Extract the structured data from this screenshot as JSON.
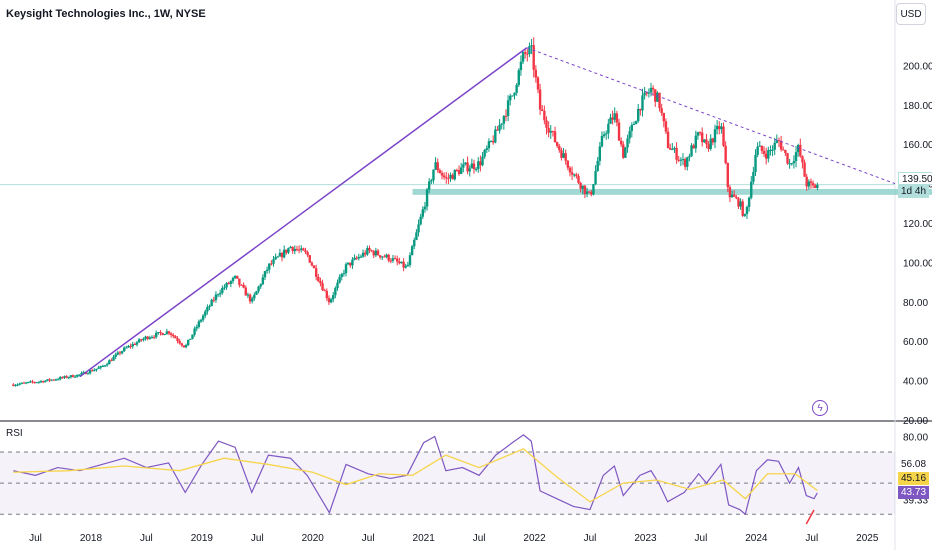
{
  "header": {
    "title": "Keysight Technologies Inc., 1W, NYSE",
    "currency_button": "USD"
  },
  "chart_data": [
    {
      "type": "candlestick",
      "title": "Keysight Technologies Inc., 1W, NYSE",
      "y_ticks": [
        20,
        40,
        60,
        80,
        100,
        120,
        140,
        160,
        180,
        200
      ],
      "y_tick_labels": [
        "20.00",
        "40.00",
        "60.00",
        "80.00",
        "100.00",
        "120.00",
        "140.00",
        "160.00",
        "180.00",
        "200.00"
      ],
      "ylim": [
        20,
        218
      ],
      "x_ticks": [
        "Jul",
        "2018",
        "Jul",
        "2019",
        "Jul",
        "2020",
        "Jul",
        "2021",
        "Jul",
        "2022",
        "Jul",
        "2023",
        "Jul",
        "2024",
        "Jul",
        "2025"
      ],
      "x_tick_dates": [
        2017.5,
        2018.0,
        2018.5,
        2019.0,
        2019.5,
        2020.0,
        2020.5,
        2021.0,
        2021.5,
        2022.0,
        2022.5,
        2023.0,
        2023.5,
        2024.0,
        2024.5,
        2025.0
      ],
      "colors": {
        "up": "#089981",
        "down": "#f23645",
        "line_tool": "#7b44c8",
        "support_zone": "#80cbc4"
      },
      "price_path": [
        [
          2017.3,
          38
        ],
        [
          2017.6,
          40
        ],
        [
          2017.9,
          43
        ],
        [
          2018.1,
          47
        ],
        [
          2018.3,
          56
        ],
        [
          2018.5,
          62
        ],
        [
          2018.7,
          65
        ],
        [
          2018.85,
          57
        ],
        [
          2019.0,
          72
        ],
        [
          2019.15,
          85
        ],
        [
          2019.3,
          92
        ],
        [
          2019.45,
          80
        ],
        [
          2019.6,
          98
        ],
        [
          2019.8,
          108
        ],
        [
          2019.95,
          104
        ],
        [
          2020.15,
          80
        ],
        [
          2020.3,
          98
        ],
        [
          2020.5,
          106
        ],
        [
          2020.7,
          102
        ],
        [
          2020.85,
          97
        ],
        [
          2021.0,
          128
        ],
        [
          2021.1,
          150
        ],
        [
          2021.2,
          142
        ],
        [
          2021.35,
          148
        ],
        [
          2021.5,
          150
        ],
        [
          2021.65,
          165
        ],
        [
          2021.8,
          185
        ],
        [
          2021.9,
          205
        ],
        [
          2021.97,
          208
        ],
        [
          2022.05,
          178
        ],
        [
          2022.2,
          160
        ],
        [
          2022.35,
          145
        ],
        [
          2022.5,
          133
        ],
        [
          2022.62,
          165
        ],
        [
          2022.72,
          175
        ],
        [
          2022.8,
          155
        ],
        [
          2022.95,
          180
        ],
        [
          2023.05,
          188
        ],
        [
          2023.12,
          182
        ],
        [
          2023.2,
          160
        ],
        [
          2023.35,
          150
        ],
        [
          2023.48,
          165
        ],
        [
          2023.55,
          158
        ],
        [
          2023.68,
          170
        ],
        [
          2023.75,
          135
        ],
        [
          2023.85,
          130
        ],
        [
          2023.9,
          122
        ],
        [
          2024.0,
          158
        ],
        [
          2024.1,
          155
        ],
        [
          2024.2,
          162
        ],
        [
          2024.3,
          150
        ],
        [
          2024.38,
          158
        ],
        [
          2024.45,
          140
        ],
        [
          2024.52,
          138
        ],
        [
          2024.55,
          139.5
        ]
      ],
      "annotations": {
        "rising_trendline": {
          "from": [
            2017.9,
            42
          ],
          "to": [
            2021.93,
            209
          ]
        },
        "falling_trendline": {
          "from": [
            2021.93,
            209
          ],
          "to": [
            2025.25,
            140
          ]
        },
        "support_zone": [
          134.3,
          137.3
        ],
        "last_price_line": 139.5
      },
      "last_price_label": "139.50",
      "countdown_label": "1d 4h"
    },
    {
      "type": "line",
      "title": "RSI",
      "ylim": [
        25,
        88
      ],
      "y_tick_labels": [
        "80.00",
        "56.08",
        "39.33"
      ],
      "y_ticks": [
        80,
        56.08,
        39.33
      ],
      "band_levels": [
        70,
        30
      ],
      "series": [
        {
          "color": "#7e57c2",
          "values": [
            [
              2017.3,
              58
            ],
            [
              2017.5,
              55
            ],
            [
              2017.7,
              60
            ],
            [
              2017.9,
              58
            ],
            [
              2018.1,
              62
            ],
            [
              2018.3,
              66
            ],
            [
              2018.5,
              60
            ],
            [
              2018.7,
              63
            ],
            [
              2018.85,
              44
            ],
            [
              2019.0,
              62
            ],
            [
              2019.15,
              77
            ],
            [
              2019.3,
              73
            ],
            [
              2019.45,
              44
            ],
            [
              2019.6,
              68
            ],
            [
              2019.8,
              66
            ],
            [
              2019.95,
              55
            ],
            [
              2020.15,
              31
            ],
            [
              2020.3,
              62
            ],
            [
              2020.5,
              56
            ],
            [
              2020.7,
              53
            ],
            [
              2020.85,
              55
            ],
            [
              2021.0,
              76
            ],
            [
              2021.1,
              80
            ],
            [
              2021.2,
              58
            ],
            [
              2021.35,
              60
            ],
            [
              2021.5,
              55
            ],
            [
              2021.65,
              68
            ],
            [
              2021.8,
              76
            ],
            [
              2021.9,
              81
            ],
            [
              2021.97,
              77
            ],
            [
              2022.05,
              45
            ],
            [
              2022.2,
              40
            ],
            [
              2022.35,
              35
            ],
            [
              2022.5,
              33
            ],
            [
              2022.62,
              55
            ],
            [
              2022.72,
              61
            ],
            [
              2022.8,
              42
            ],
            [
              2022.95,
              55
            ],
            [
              2023.05,
              58
            ],
            [
              2023.12,
              50
            ],
            [
              2023.2,
              38
            ],
            [
              2023.35,
              44
            ],
            [
              2023.48,
              56
            ],
            [
              2023.55,
              50
            ],
            [
              2023.68,
              62
            ],
            [
              2023.75,
              36
            ],
            [
              2023.85,
              33
            ],
            [
              2023.9,
              30
            ],
            [
              2024.0,
              58
            ],
            [
              2024.1,
              65
            ],
            [
              2024.2,
              64
            ],
            [
              2024.3,
              50
            ],
            [
              2024.38,
              60
            ],
            [
              2024.45,
              42
            ],
            [
              2024.52,
              40
            ],
            [
              2024.55,
              43.73
            ]
          ]
        },
        {
          "color": "#f7d54a",
          "values": [
            [
              2017.3,
              57
            ],
            [
              2017.8,
              58
            ],
            [
              2018.3,
              61
            ],
            [
              2018.8,
              58
            ],
            [
              2019.2,
              66
            ],
            [
              2019.6,
              62
            ],
            [
              2020.0,
              57
            ],
            [
              2020.3,
              49
            ],
            [
              2020.6,
              56
            ],
            [
              2020.9,
              55
            ],
            [
              2021.2,
              68
            ],
            [
              2021.5,
              60
            ],
            [
              2021.9,
              72
            ],
            [
              2022.2,
              54
            ],
            [
              2022.5,
              38
            ],
            [
              2022.8,
              50
            ],
            [
              2023.1,
              52
            ],
            [
              2023.4,
              46
            ],
            [
              2023.7,
              52
            ],
            [
              2023.9,
              40
            ],
            [
              2024.1,
              56
            ],
            [
              2024.35,
              56
            ],
            [
              2024.55,
              45.16
            ]
          ]
        }
      ],
      "value_labels": [
        "56.08",
        "45.16",
        "43.73"
      ]
    }
  ]
}
